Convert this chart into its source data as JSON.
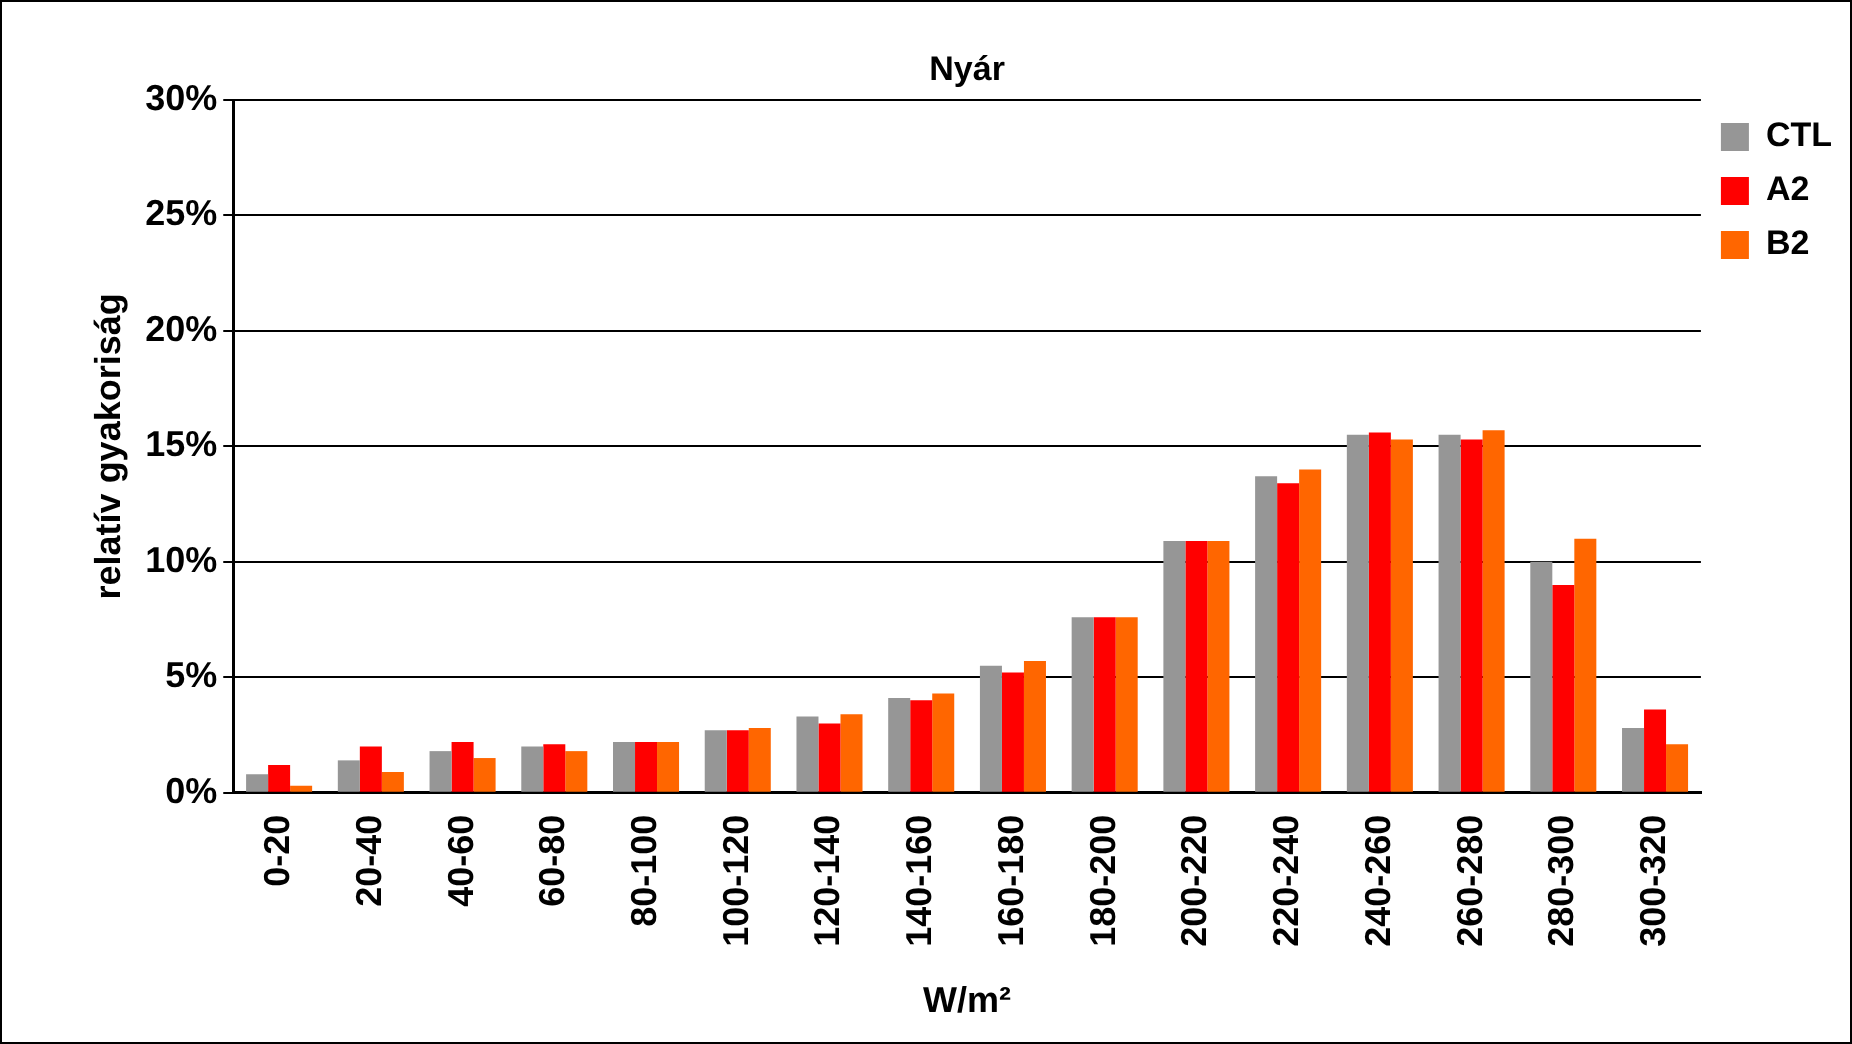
{
  "chart_data": {
    "type": "bar",
    "title": "Nyár",
    "xlabel": "W/m²",
    "ylabel": "relatív gyakoriság",
    "categories": [
      "0-20",
      "20-40",
      "40-60",
      "60-80",
      "80-100",
      "100-120",
      "120-140",
      "140-160",
      "160-180",
      "180-200",
      "200-220",
      "220-240",
      "240-260",
      "260-280",
      "280-300",
      "300-320"
    ],
    "series": [
      {
        "name": "CTL",
        "color": "#969696",
        "values": [
          0.8,
          1.4,
          1.8,
          2.0,
          2.2,
          2.7,
          3.3,
          4.1,
          5.5,
          7.6,
          10.9,
          13.7,
          15.5,
          15.5,
          10.0,
          2.8
        ]
      },
      {
        "name": "A2",
        "color": "#ff0000",
        "values": [
          1.2,
          2.0,
          2.2,
          2.1,
          2.2,
          2.7,
          3.0,
          4.0,
          5.2,
          7.6,
          10.9,
          13.4,
          15.6,
          15.3,
          9.0,
          3.6
        ]
      },
      {
        "name": "B2",
        "color": "#ff6600",
        "values": [
          0.3,
          0.9,
          1.5,
          1.8,
          2.2,
          2.8,
          3.4,
          4.3,
          5.7,
          7.6,
          10.9,
          14.0,
          15.3,
          15.7,
          11.0,
          2.1
        ]
      }
    ],
    "ylim": [
      0,
      30
    ],
    "yticks": [
      {
        "value": 0,
        "label": "0%"
      },
      {
        "value": 5,
        "label": "5%"
      },
      {
        "value": 10,
        "label": "10%"
      },
      {
        "value": 15,
        "label": "15%"
      },
      {
        "value": 20,
        "label": "20%"
      },
      {
        "value": 25,
        "label": "25%"
      },
      {
        "value": 30,
        "label": "30%"
      }
    ],
    "grid": "y",
    "legend": "top right"
  }
}
